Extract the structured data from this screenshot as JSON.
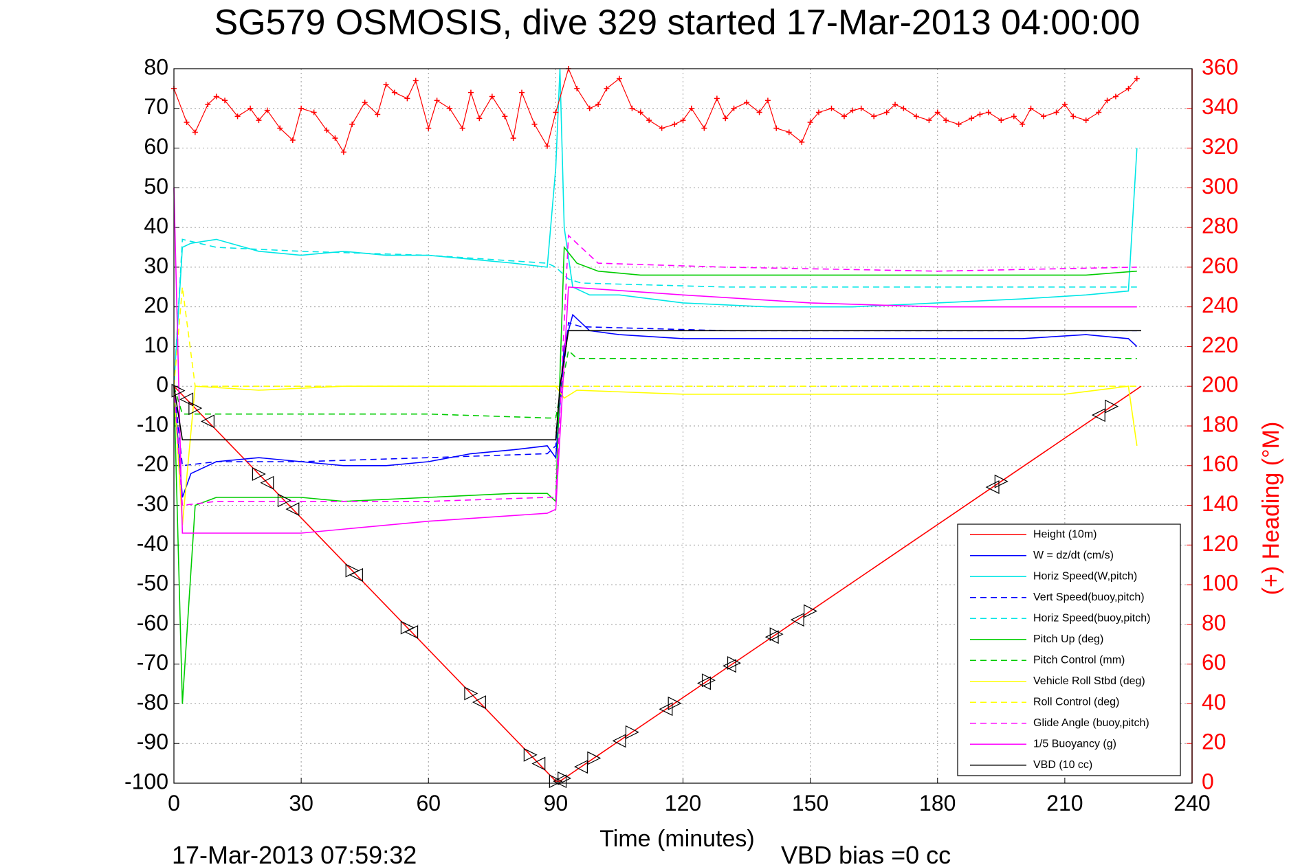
{
  "chart_data": {
    "type": "line",
    "title": "SG579 OSMOSIS, dive 329 started 17-Mar-2013 04:00:00",
    "xlabel": "Time (minutes)",
    "ylabel": "",
    "y2label": "(+) Heading (°M)",
    "xlim": [
      0,
      240
    ],
    "ylim": [
      -100,
      80
    ],
    "y2lim": [
      0,
      360
    ],
    "x_ticks": [
      "0",
      "30",
      "60",
      "90",
      "120",
      "150",
      "180",
      "210",
      "240"
    ],
    "y_ticks": [
      "80",
      "70",
      "60",
      "50",
      "40",
      "30",
      "20",
      "10",
      "0",
      "-10",
      "-20",
      "-30",
      "-40",
      "-50",
      "-60",
      "-70",
      "-80",
      "-90",
      "-100"
    ],
    "y2_ticks": [
      "360",
      "340",
      "320",
      "300",
      "280",
      "260",
      "240",
      "220",
      "200",
      "180",
      "160",
      "140",
      "120",
      "100",
      "80",
      "60",
      "40",
      "20",
      "0"
    ],
    "grid": true,
    "legend_position": "bottom-right",
    "footer_left": "17-Mar-2013 07:59:32",
    "footer_right": "VBD bias =0 cc",
    "series": [
      {
        "name": "Height (10m)",
        "color": "#ff0000",
        "style": "solid",
        "x": [
          0,
          90,
          91,
          228
        ],
        "y": [
          0,
          -99.5,
          -99.5,
          0
        ]
      },
      {
        "name": "W = dz/dt (cm/s)",
        "color": "#0000ff",
        "style": "solid",
        "x": [
          0,
          2,
          4,
          10,
          20,
          30,
          40,
          50,
          60,
          70,
          80,
          88,
          90,
          92,
          94,
          98,
          105,
          120,
          140,
          160,
          180,
          200,
          215,
          225,
          227
        ],
        "y": [
          0,
          -28,
          -22,
          -19,
          -18,
          -19,
          -20,
          -20,
          -19,
          -17,
          -16,
          -15,
          -18,
          10,
          18,
          14,
          13,
          12,
          12,
          12,
          12,
          12,
          13,
          12,
          10
        ]
      },
      {
        "name": "Horiz Speed(W,pitch)",
        "color": "#00e6e6",
        "style": "solid",
        "x": [
          0,
          2,
          4,
          10,
          20,
          30,
          40,
          50,
          60,
          70,
          80,
          88,
          90,
          91,
          92,
          94,
          98,
          105,
          120,
          140,
          160,
          180,
          200,
          215,
          225,
          227
        ],
        "y": [
          0,
          35,
          36,
          37,
          34,
          33,
          34,
          33,
          33,
          32,
          31,
          30,
          55,
          80,
          40,
          25,
          23,
          23,
          21,
          20,
          20,
          21,
          22,
          23,
          24,
          60
        ]
      },
      {
        "name": "Vert Speed(buoy,pitch)",
        "color": "#0000ff",
        "style": "dashed",
        "x": [
          0,
          2,
          10,
          30,
          60,
          88,
          90,
          93,
          96,
          130,
          180,
          227
        ],
        "y": [
          0,
          -20,
          -19,
          -19,
          -18,
          -17,
          -15,
          16,
          15,
          14,
          14,
          14
        ]
      },
      {
        "name": "Horiz Speed(buoy,pitch)",
        "color": "#00e6e6",
        "style": "dashed",
        "x": [
          0,
          2,
          10,
          30,
          60,
          88,
          90,
          93,
          96,
          130,
          180,
          227
        ],
        "y": [
          0,
          37,
          35,
          34,
          33,
          31,
          30,
          27,
          26,
          25,
          25,
          25
        ]
      },
      {
        "name": "Pitch Up (deg)",
        "color": "#00cc00",
        "style": "solid",
        "x": [
          0,
          2,
          5,
          10,
          20,
          30,
          40,
          60,
          80,
          88,
          90,
          92,
          95,
          100,
          110,
          125,
          130,
          160,
          190,
          215,
          227
        ],
        "y": [
          0,
          -80,
          -30,
          -28,
          -28,
          -28,
          -29,
          -28,
          -27,
          -27,
          -29,
          35,
          31,
          29,
          28,
          28,
          28,
          28,
          28,
          28,
          29
        ]
      },
      {
        "name": "Pitch Control (mm)",
        "color": "#00cc00",
        "style": "dashed",
        "x": [
          0,
          2,
          30,
          60,
          88,
          90,
          93,
          95,
          227
        ],
        "y": [
          0,
          -7,
          -7,
          -7,
          -8,
          -8,
          9,
          7,
          7
        ]
      },
      {
        "name": "Vehicle Roll Stbd (deg)",
        "color": "#ffff00",
        "style": "solid",
        "x": [
          0,
          2,
          5,
          20,
          40,
          60,
          80,
          90,
          92,
          95,
          120,
          150,
          180,
          210,
          225,
          227
        ],
        "y": [
          0,
          -35,
          0,
          -1,
          0,
          0,
          0,
          0,
          -3,
          -1,
          -2,
          -2,
          -2,
          -2,
          0,
          -15
        ]
      },
      {
        "name": "Roll Control (deg)",
        "color": "#ffff00",
        "style": "dashed",
        "x": [
          0,
          2,
          5,
          30,
          60,
          88,
          90,
          93,
          120,
          150,
          180,
          227
        ],
        "y": [
          0,
          25,
          0,
          0,
          0,
          0,
          0,
          0,
          0,
          0,
          0,
          0
        ]
      },
      {
        "name": "Glide Angle (buoy,pitch)",
        "color": "#ff00ff",
        "style": "dashed",
        "x": [
          0,
          2,
          10,
          30,
          60,
          88,
          90,
          93,
          100,
          130,
          180,
          227
        ],
        "y": [
          0,
          -30,
          -29,
          -29,
          -29,
          -28,
          -28,
          38,
          31,
          30,
          29,
          30
        ]
      },
      {
        "name": "1/5 Buoyancy (g)",
        "color": "#ff00ff",
        "style": "solid",
        "x": [
          0,
          2,
          10,
          30,
          60,
          88,
          90,
          93,
          120,
          150,
          180,
          227
        ],
        "y": [
          50,
          -37,
          -37,
          -37,
          -34,
          -32,
          -31,
          25,
          23,
          21,
          20,
          20
        ]
      },
      {
        "name": "VBD (10 cc)",
        "color": "#000000",
        "style": "solid",
        "x": [
          0,
          2,
          90,
          91,
          93,
          228
        ],
        "y": [
          0,
          -13.5,
          -13.5,
          0,
          14,
          14
        ]
      }
    ],
    "heading": {
      "name": "(+) Heading",
      "color": "#ff0000",
      "marker": "+",
      "x": [
        0,
        3,
        5,
        8,
        10,
        12,
        15,
        18,
        20,
        22,
        25,
        28,
        30,
        33,
        36,
        38,
        40,
        42,
        45,
        48,
        50,
        52,
        55,
        57,
        60,
        62,
        65,
        68,
        70,
        72,
        75,
        78,
        80,
        82,
        85,
        88,
        90,
        93,
        95,
        98,
        100,
        102,
        105,
        108,
        110,
        112,
        115,
        118,
        120,
        122,
        125,
        128,
        130,
        132,
        135,
        138,
        140,
        142,
        145,
        148,
        150,
        152,
        155,
        158,
        160,
        162,
        165,
        168,
        170,
        172,
        175,
        178,
        180,
        182,
        185,
        188,
        190,
        192,
        195,
        198,
        200,
        202,
        205,
        208,
        210,
        212,
        215,
        218,
        220,
        222,
        225,
        227
      ],
      "y": [
        350,
        333,
        328,
        342,
        346,
        344,
        336,
        340,
        334,
        339,
        330,
        324,
        340,
        338,
        329,
        325,
        318,
        332,
        343,
        337,
        352,
        348,
        345,
        354,
        330,
        344,
        340,
        330,
        348,
        335,
        346,
        336,
        325,
        348,
        332,
        321,
        338,
        360,
        350,
        340,
        342,
        350,
        355,
        340,
        338,
        334,
        330,
        332,
        334,
        340,
        330,
        345,
        335,
        340,
        343,
        338,
        344,
        330,
        328,
        323,
        333,
        338,
        340,
        336,
        339,
        340,
        336,
        338,
        342,
        340,
        336,
        334,
        338,
        334,
        332,
        335,
        337,
        338,
        334,
        336,
        332,
        340,
        336,
        338,
        342,
        336,
        334,
        338,
        344,
        346,
        350,
        355
      ]
    }
  }
}
